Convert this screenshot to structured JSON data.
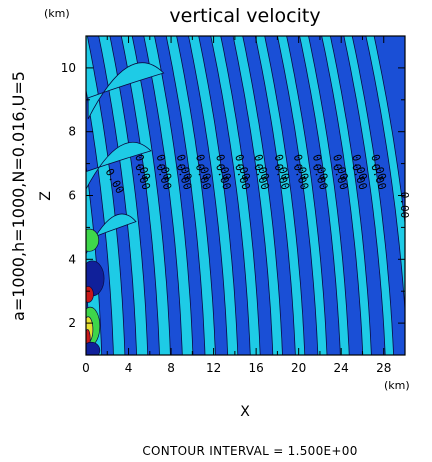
{
  "chart_data": {
    "type": "contour",
    "title": "vertical velocity",
    "parameters_label": "a=1000,h=1000,N=0.016,U=5",
    "xlabel": "X",
    "ylabel": "Z",
    "x_unit": "(km)",
    "y_unit": "(km)",
    "xlim": [
      0,
      30
    ],
    "ylim": [
      1,
      11
    ],
    "x_ticks": [
      "0",
      "4",
      "8",
      "12",
      "16",
      "20",
      "24",
      "28"
    ],
    "y_ticks": [
      "2",
      "4",
      "6",
      "8",
      "10"
    ],
    "contour_interval_label": "CONTOUR INTERVAL = 1.500E+00",
    "zero_contour_label": "0.00",
    "colors": {
      "dark_blue": "#1a4fd6",
      "light_cyan": "#1ecbe6",
      "navy": "#10209a",
      "green": "#3ed64a",
      "yellow": "#e8e030",
      "red": "#c81818"
    }
  }
}
